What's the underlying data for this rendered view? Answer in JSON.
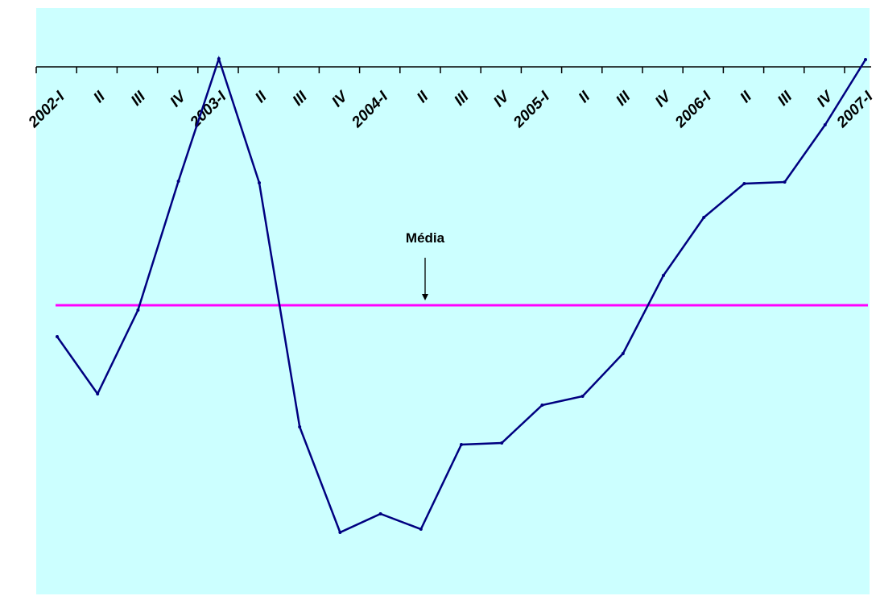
{
  "chart_data": {
    "type": "line",
    "title": "",
    "xlabel": "",
    "ylabel": "",
    "categories": [
      "2002-I",
      "II",
      "III",
      "IV",
      "2003-I",
      "II",
      "III",
      "IV",
      "2004-I",
      "II",
      "III",
      "IV",
      "2005-I",
      "II",
      "III",
      "IV",
      "2006-I",
      "II",
      "III",
      "IV",
      "2007-I"
    ],
    "series": [
      {
        "values": [
          418,
          489,
          385,
          225,
          73,
          227,
          530,
          661,
          638,
          657,
          552,
          550,
          503,
          492,
          439,
          342,
          270,
          228,
          226,
          155,
          74
        ]
      }
    ],
    "y_direction": "down",
    "ylim": [
      60,
      700
    ],
    "reference_line": {
      "label": "Média",
      "value": 379
    },
    "grid": false,
    "legend": "none",
    "colors": {
      "plot_background": "#ccffff",
      "series_line": "#000080",
      "reference_line": "#ff00ff",
      "axis": "#000000"
    }
  }
}
